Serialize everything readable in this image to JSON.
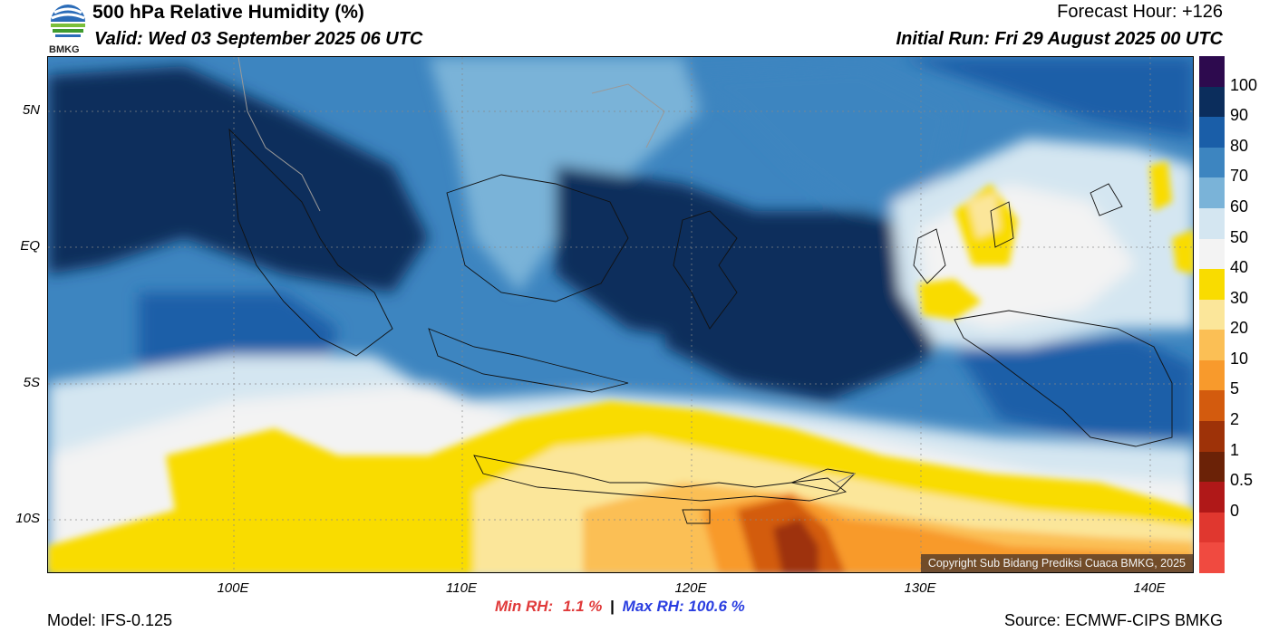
{
  "header": {
    "logo_text": "BMKG",
    "title": "500 hPa Relative Humidity (%)",
    "valid": "Valid: Wed 03 September 2025 06 UTC",
    "forecast_hour": "Forecast Hour: +126",
    "initial_run": "Initial Run: Fri 29 August 2025 00 UTC"
  },
  "axes": {
    "y_ticks": [
      "5N",
      "EQ",
      "5S",
      "10S"
    ],
    "x_ticks": [
      "100E",
      "110E",
      "120E",
      "130E",
      "140E"
    ]
  },
  "colorbar": {
    "labels": [
      "100",
      "90",
      "80",
      "70",
      "60",
      "50",
      "40",
      "30",
      "20",
      "10",
      "5",
      "2",
      "1",
      "0.5",
      "0"
    ],
    "colors": [
      "#2d0a4e",
      "#0b2d5c",
      "#1a5ea8",
      "#3d85c0",
      "#7ab3d8",
      "#d4e6f1",
      "#f3f3f3",
      "#f9dc00",
      "#fbe69a",
      "#fbbf55",
      "#f89a2c",
      "#d35b0e",
      "#9e3208",
      "#6b2207",
      "#b01818",
      "#e0372f",
      "#f04a40"
    ]
  },
  "footer": {
    "model": "Model: IFS-0.125",
    "min_label": "Min RH:",
    "min_value": "1.1 %",
    "separator": "|",
    "max_label": "Max RH:",
    "max_value": "100.6 %",
    "source": "Source: ECMWF-CIPS BMKG",
    "copyright": "Copyright Sub Bidang Prediksi Cuaca BMKG, 2025"
  }
}
